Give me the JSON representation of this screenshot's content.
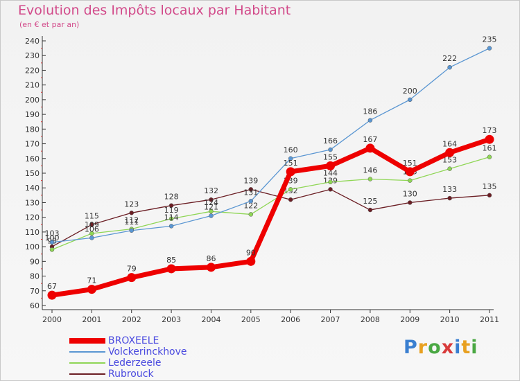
{
  "title": "Evolution des Impôts locaux par Habitant",
  "subtitle": "(en € et par an)",
  "logo_text": "Proxiti",
  "chart_data": {
    "type": "line",
    "title": "Evolution des Impôts locaux par Habitant",
    "subtitle": "(en € et par an)",
    "xlabel": "",
    "ylabel": "",
    "x": [
      "2000",
      "2001",
      "2002",
      "2003",
      "2004",
      "2005",
      "2006",
      "2007",
      "2008",
      "2009",
      "2010",
      "2011"
    ],
    "ylim": [
      60,
      240
    ],
    "yticks": [
      60,
      70,
      80,
      90,
      100,
      110,
      120,
      130,
      140,
      150,
      160,
      170,
      180,
      190,
      200,
      210,
      220,
      230,
      240
    ],
    "grid": false,
    "legend_position": "bottom-left",
    "series": [
      {
        "name": "Rubrouck",
        "color": "#6b1e24",
        "values": [
          100,
          115,
          123,
          128,
          132,
          139,
          132,
          139,
          125,
          130,
          133,
          135
        ]
      },
      {
        "name": "Lederzeele",
        "color": "#8fd655",
        "values": [
          98,
          109,
          112,
          119,
          124,
          122,
          139,
          144,
          146,
          145,
          153,
          161
        ]
      },
      {
        "name": "Volckerinckhove",
        "color": "#5a96d2",
        "values": [
          103,
          106,
          111,
          114,
          121,
          131,
          160,
          166,
          186,
          200,
          222,
          235
        ]
      },
      {
        "name": "BROXEELE",
        "color": "#ee0000",
        "values": [
          67,
          71,
          79,
          85,
          86,
          90,
          151,
          155,
          167,
          151,
          164,
          173
        ]
      }
    ],
    "legend_order": [
      "BROXEELE",
      "Volckerinckhove",
      "Lederzeele",
      "Rubrouck"
    ]
  }
}
